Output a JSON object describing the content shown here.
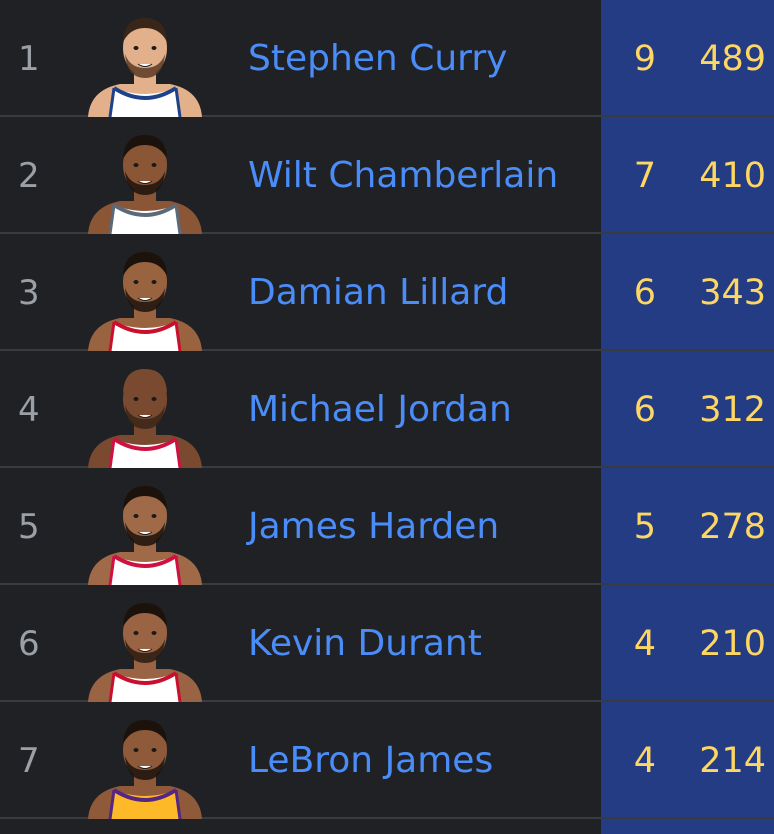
{
  "players": [
    {
      "rank": "1",
      "name": "Stephen Curry",
      "stat1": "9",
      "stat2": "489",
      "skin": "#e2b08a",
      "hair": "#3a2618",
      "beard": "#5a3a24",
      "jersey": "#ffffff",
      "trim": "#1d428a"
    },
    {
      "rank": "2",
      "name": "Wilt Chamberlain",
      "stat1": "7",
      "stat2": "410",
      "skin": "#8a5636",
      "hair": "#1c120c",
      "beard": "#1c120c",
      "jersey": "#ffffff",
      "trim": "#5a6a7a"
    },
    {
      "rank": "3",
      "name": "Damian Lillard",
      "stat1": "6",
      "stat2": "343",
      "skin": "#9a6340",
      "hair": "#1c120c",
      "beard": "#1c120c",
      "jersey": "#ffffff",
      "trim": "#c8102e"
    },
    {
      "rank": "4",
      "name": "Michael Jordan",
      "stat1": "6",
      "stat2": "312",
      "skin": "#7a4a30",
      "hair": "#7a4a30",
      "beard": "#3a2418",
      "jersey": "#ffffff",
      "trim": "#ce1141"
    },
    {
      "rank": "5",
      "name": "James Harden",
      "stat1": "5",
      "stat2": "278",
      "skin": "#a06a48",
      "hair": "#1c120c",
      "beard": "#1a100a",
      "jersey": "#ffffff",
      "trim": "#ce1141"
    },
    {
      "rank": "6",
      "name": "Kevin Durant",
      "stat1": "4",
      "stat2": "210",
      "skin": "#9a6444",
      "hair": "#1c120c",
      "beard": "#2a1a10",
      "jersey": "#ffffff",
      "trim": "#c8102e"
    },
    {
      "rank": "7",
      "name": "LeBron James",
      "stat1": "4",
      "stat2": "214",
      "skin": "#8e5a3a",
      "hair": "#1c120c",
      "beard": "#1c120c",
      "jersey": "#fdb927",
      "trim": "#552583"
    }
  ]
}
